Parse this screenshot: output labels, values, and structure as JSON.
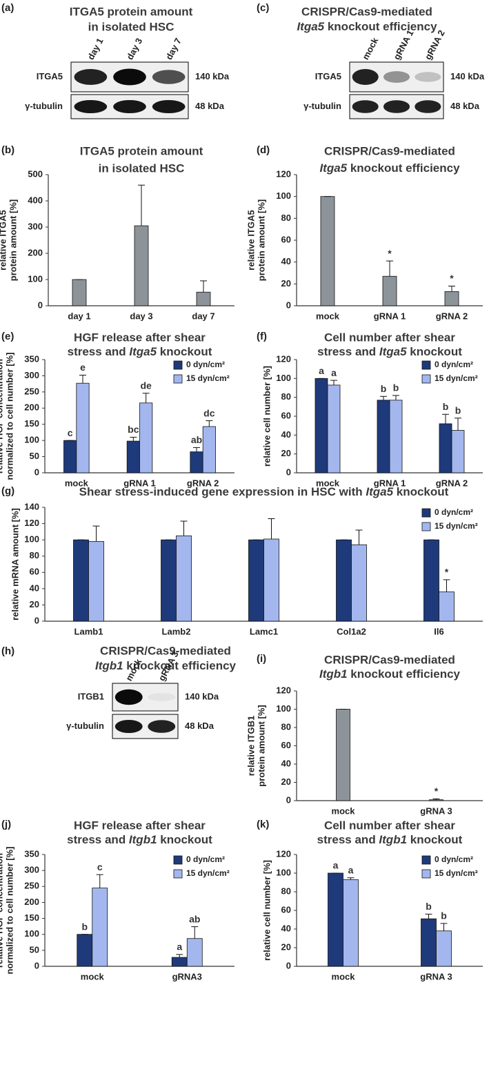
{
  "blots": [
    {
      "panel": "(a)",
      "title": [
        "ITGA5 protein amount",
        "in isolated HSC"
      ],
      "lanes": [
        "day 1",
        "day 3",
        "day 7"
      ],
      "rows": [
        {
          "name": "ITGA5",
          "size": "140 kDa"
        },
        {
          "name": "γ-tubulin",
          "size": "48 kDa"
        }
      ]
    },
    {
      "panel": "(c)",
      "title": [
        "CRISPR/Cas9-mediated",
        [
          {
            "text": "Itga5",
            "italic": true
          },
          " knockout efficiency"
        ]
      ],
      "lanes": [
        "mock",
        "gRNA 1",
        "gRNA 2"
      ],
      "rows": [
        {
          "name": "ITGA5",
          "size": "140 kDa"
        },
        {
          "name": "γ-tubulin",
          "size": "48 kDa"
        }
      ]
    },
    {
      "panel": "(h)",
      "title": [
        "CRISPR/Cas9-mediated",
        [
          {
            "text": "Itgb1",
            "italic": true
          },
          " knockout efficiency"
        ]
      ],
      "lanes": [
        "mock",
        "gRNA 3"
      ],
      "rows": [
        {
          "name": "ITGB1",
          "size": "140 kDa"
        },
        {
          "name": "γ-tubulin",
          "size": "48 kDa"
        }
      ]
    }
  ],
  "chart_data": [
    {
      "type": "bar",
      "panel": "(b)",
      "title": [
        "ITGA5 protein amount",
        "in isolated HSC"
      ],
      "ylabel": [
        "relative ITGA5",
        "protein amount [%]"
      ],
      "categories": [
        "day 1",
        "day 3",
        "day 7"
      ],
      "series": [
        {
          "color": "#8c9399",
          "values": [
            100,
            305,
            52
          ],
          "errors": [
            0,
            155,
            43
          ]
        }
      ],
      "ylim": [
        0,
        500
      ],
      "yticks": [
        0,
        100,
        200,
        300,
        400,
        500
      ]
    },
    {
      "type": "bar",
      "panel": "(d)",
      "title": [
        "CRISPR/Cas9-mediated",
        [
          {
            "text": "Itga5",
            "italic": true
          },
          " knockout efficiency"
        ]
      ],
      "ylabel": [
        "relative ITGA5",
        "protein amount [%]"
      ],
      "categories": [
        "mock",
        "gRNA 1",
        "gRNA 2"
      ],
      "series": [
        {
          "color": "#8c9399",
          "values": [
            100,
            27,
            13
          ],
          "errors": [
            0,
            14,
            5
          ],
          "annotations": [
            null,
            "*",
            "*"
          ]
        }
      ],
      "ylim": [
        0,
        120
      ],
      "yticks": [
        0,
        20,
        40,
        60,
        80,
        100,
        120
      ]
    },
    {
      "type": "bar",
      "panel": "(e)",
      "title": [
        "HGF release after shear",
        [
          "stress and ",
          {
            "text": "Itga5",
            "italic": true
          },
          " knockout"
        ]
      ],
      "ylabel": [
        "relative HGF concentration",
        "normalized to cell number [%]"
      ],
      "categories": [
        "mock",
        "gRNA 1",
        "gRNA 2"
      ],
      "series": [
        {
          "name": "0 dyn/cm²",
          "color": "#1f3a7a",
          "values": [
            100,
            98,
            65
          ],
          "errors": [
            0,
            12,
            13
          ],
          "annotations": [
            "c",
            "bc",
            "ab"
          ]
        },
        {
          "name": "15 dyn/cm²",
          "color": "#a3b7ee",
          "values": [
            277,
            216,
            143
          ],
          "errors": [
            25,
            30,
            18
          ],
          "annotations": [
            "e",
            "de",
            "dc"
          ]
        }
      ],
      "ylim": [
        0,
        350
      ],
      "yticks": [
        0,
        50,
        100,
        150,
        200,
        250,
        300,
        350
      ],
      "legend": "upper right"
    },
    {
      "type": "bar",
      "panel": "(f)",
      "title": [
        "Cell number after shear",
        [
          "stress and ",
          {
            "text": "Itga5",
            "italic": true
          },
          " knockout"
        ]
      ],
      "ylabel": [
        "relative cell number [%]"
      ],
      "categories": [
        "mock",
        "gRNA 1",
        "gRNA 2"
      ],
      "series": [
        {
          "name": "0 dyn/cm²",
          "color": "#1f3a7a",
          "values": [
            100,
            77,
            52
          ],
          "errors": [
            0,
            4,
            10
          ],
          "annotations": [
            "a",
            "b",
            "b"
          ]
        },
        {
          "name": "15 dyn/cm²",
          "color": "#a3b7ee",
          "values": [
            93,
            77,
            45
          ],
          "errors": [
            5,
            5,
            13
          ],
          "annotations": [
            "a",
            "b",
            "b"
          ]
        }
      ],
      "ylim": [
        0,
        120
      ],
      "yticks": [
        0,
        20,
        40,
        60,
        80,
        100,
        120
      ],
      "legend": "upper right"
    },
    {
      "type": "bar",
      "panel": "(g)",
      "title": [
        [
          "Shear stress-induced gene expression in HSC with ",
          {
            "text": "Itga5",
            "italic": true
          },
          " knockout"
        ]
      ],
      "ylabel": [
        "relative mRNA amount [%]"
      ],
      "categories": [
        "Lamb1",
        "Lamb2",
        "Lamc1",
        "Col1a2",
        "Il6"
      ],
      "series": [
        {
          "name": "0 dyn/cm²",
          "color": "#1f3a7a",
          "values": [
            100,
            100,
            100,
            100,
            100
          ],
          "errors": [
            0,
            0,
            0,
            0,
            0
          ]
        },
        {
          "name": "15 dyn/cm²",
          "color": "#a3b7ee",
          "values": [
            98,
            105,
            101,
            94,
            36
          ],
          "errors": [
            19,
            18,
            25,
            18,
            15
          ],
          "annotations": [
            null,
            null,
            null,
            null,
            "*"
          ]
        }
      ],
      "ylim": [
        0,
        140
      ],
      "yticks": [
        0,
        20,
        40,
        60,
        80,
        100,
        120,
        140
      ],
      "legend": "upper right"
    },
    {
      "type": "bar",
      "panel": "(i)",
      "title": [
        "CRISPR/Cas9-mediated",
        [
          {
            "text": "Itgb1",
            "italic": true
          },
          " knockout efficiency"
        ]
      ],
      "ylabel": [
        "relative ITGB1",
        "protein amount [%]"
      ],
      "categories": [
        "mock",
        "gRNA 3"
      ],
      "series": [
        {
          "color": "#8c9399",
          "values": [
            100,
            1
          ],
          "errors": [
            0,
            1
          ],
          "annotations": [
            null,
            "*"
          ]
        }
      ],
      "ylim": [
        0,
        120
      ],
      "yticks": [
        0,
        20,
        40,
        60,
        80,
        100,
        120
      ]
    },
    {
      "type": "bar",
      "panel": "(j)",
      "title": [
        "HGF release after shear",
        [
          "stress and ",
          {
            "text": "Itgb1",
            "italic": true
          },
          " knockout"
        ]
      ],
      "ylabel": [
        "relative HGF concentration",
        "normalized to cell number [%]"
      ],
      "categories": [
        "mock",
        "gRNA3"
      ],
      "series": [
        {
          "name": "0 dyn/cm²",
          "color": "#1f3a7a",
          "values": [
            100,
            28
          ],
          "errors": [
            0,
            9
          ],
          "annotations": [
            "b",
            "a"
          ]
        },
        {
          "name": "15 dyn/cm²",
          "color": "#a3b7ee",
          "values": [
            245,
            87
          ],
          "errors": [
            42,
            37
          ],
          "annotations": [
            "c",
            "ab"
          ]
        }
      ],
      "ylim": [
        0,
        350
      ],
      "yticks": [
        0,
        50,
        100,
        150,
        200,
        250,
        300,
        350
      ],
      "legend": "upper right"
    },
    {
      "type": "bar",
      "panel": "(k)",
      "title": [
        "Cell number after shear",
        [
          "stress and ",
          {
            "text": "Itgb1",
            "italic": true
          },
          " knockout"
        ]
      ],
      "ylabel": [
        "relative cell number [%]"
      ],
      "categories": [
        "mock",
        "gRNA 3"
      ],
      "series": [
        {
          "name": "0 dyn/cm²",
          "color": "#1f3a7a",
          "values": [
            100,
            51
          ],
          "errors": [
            0,
            5
          ],
          "annotations": [
            "a",
            "b"
          ]
        },
        {
          "name": "15 dyn/cm²",
          "color": "#a3b7ee",
          "values": [
            93,
            38
          ],
          "errors": [
            2,
            8
          ],
          "annotations": [
            "a",
            "b"
          ]
        }
      ],
      "ylim": [
        0,
        120
      ],
      "yticks": [
        0,
        20,
        40,
        60,
        80,
        100,
        120
      ],
      "legend": "upper right"
    }
  ]
}
